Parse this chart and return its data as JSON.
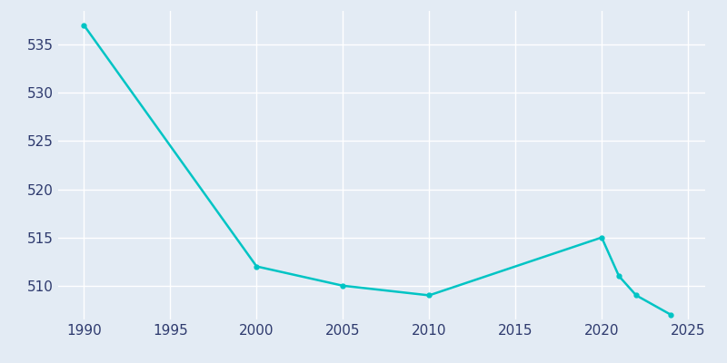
{
  "years": [
    1990,
    2000,
    2005,
    2010,
    2020,
    2021,
    2022,
    2024
  ],
  "population": [
    537,
    512,
    510,
    509,
    515,
    511,
    509,
    507
  ],
  "line_color": "#00C4C4",
  "background_color": "#E3EBF4",
  "grid_color": "#FFFFFF",
  "xlim": [
    1988.5,
    2026
  ],
  "ylim": [
    506.5,
    538.5
  ],
  "xticks": [
    1990,
    1995,
    2000,
    2005,
    2010,
    2015,
    2020,
    2025
  ],
  "yticks": [
    510,
    515,
    520,
    525,
    530,
    535
  ],
  "tick_color": "#2E3A6E",
  "tick_fontsize": 11,
  "linewidth": 1.8,
  "marker": "o",
  "markersize": 3.5
}
